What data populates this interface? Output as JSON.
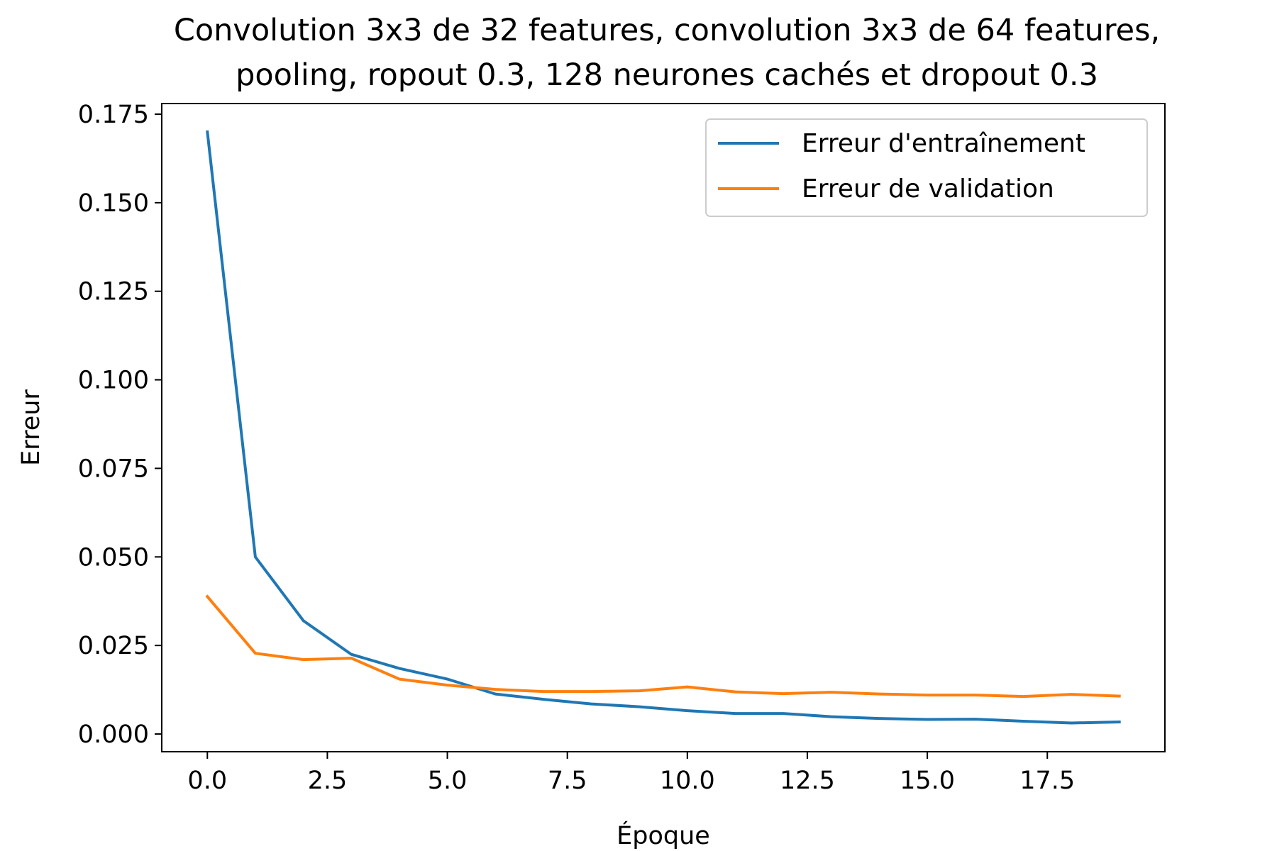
{
  "chart_data": {
    "type": "line",
    "title": "Convolution 3x3 de 32 features, convolution 3x3 de 64 features,",
    "subtitle": "pooling, ropout 0.3, 128 neurones cachés et dropout 0.3",
    "xlabel": "Époque",
    "ylabel": "Erreur",
    "xlim": [
      -0.95,
      19.95
    ],
    "ylim": [
      -0.005,
      0.178
    ],
    "xticks": [
      "0.0",
      "2.5",
      "5.0",
      "7.5",
      "10.0",
      "12.5",
      "15.0",
      "17.5"
    ],
    "yticks": [
      "0.000",
      "0.025",
      "0.050",
      "0.075",
      "0.100",
      "0.125",
      "0.150",
      "0.175"
    ],
    "legend_position": "top-right",
    "grid": false,
    "x": [
      0,
      1,
      2,
      3,
      4,
      5,
      6,
      7,
      8,
      9,
      10,
      11,
      12,
      13,
      14,
      15,
      16,
      17,
      18,
      19
    ],
    "series": [
      {
        "name": "Erreur d'entraînement",
        "color": "#1f77b4",
        "values": [
          0.17,
          0.05,
          0.032,
          0.0225,
          0.0185,
          0.0155,
          0.0113,
          0.0098,
          0.0085,
          0.0077,
          0.0066,
          0.0058,
          0.0058,
          0.0049,
          0.0044,
          0.0041,
          0.0042,
          0.0036,
          0.0031,
          0.0034
        ]
      },
      {
        "name": "Erreur de validation",
        "color": "#ff7f0e",
        "values": [
          0.0388,
          0.0228,
          0.021,
          0.0214,
          0.0155,
          0.0138,
          0.0126,
          0.012,
          0.012,
          0.0122,
          0.0133,
          0.0119,
          0.0114,
          0.0118,
          0.0113,
          0.011,
          0.011,
          0.0106,
          0.0112,
          0.0107
        ]
      }
    ]
  }
}
